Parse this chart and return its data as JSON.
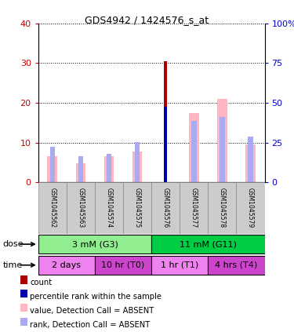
{
  "title": "GDS4942 / 1424576_s_at",
  "samples": [
    "GSM1045562",
    "GSM1045563",
    "GSM1045574",
    "GSM1045575",
    "GSM1045576",
    "GSM1045577",
    "GSM1045578",
    "GSM1045579"
  ],
  "count_values": [
    0,
    0,
    0,
    0,
    30.5,
    0,
    0,
    0
  ],
  "percentile_rank_values": [
    0,
    0,
    0,
    0,
    19.0,
    0,
    0,
    0
  ],
  "absent_value": [
    6.5,
    4.8,
    6.5,
    7.8,
    0,
    17.5,
    21.0,
    9.5
  ],
  "absent_rank": [
    9.0,
    6.5,
    7.2,
    10.2,
    0,
    15.5,
    16.5,
    11.5
  ],
  "ylim_left": [
    0,
    40
  ],
  "ylim_right": [
    0,
    100
  ],
  "yticks_left": [
    0,
    10,
    20,
    30,
    40
  ],
  "yticks_right": [
    0,
    25,
    50,
    75,
    100
  ],
  "dose_groups": [
    {
      "label": "3 mM (G3)",
      "start": 0,
      "end": 4,
      "color": "#90EE90"
    },
    {
      "label": "11 mM (G11)",
      "start": 4,
      "end": 8,
      "color": "#00CC44"
    }
  ],
  "time_groups": [
    {
      "label": "2 days",
      "start": 0,
      "end": 2,
      "color": "#EE82EE"
    },
    {
      "label": "10 hr (T0)",
      "start": 2,
      "end": 4,
      "color": "#CC44CC"
    },
    {
      "label": "1 hr (T1)",
      "start": 4,
      "end": 6,
      "color": "#EE82EE"
    },
    {
      "label": "4 hrs (T4)",
      "start": 6,
      "end": 8,
      "color": "#CC44CC"
    }
  ],
  "color_count": "#AA0000",
  "color_rank": "#0000AA",
  "color_absent_value": "#FFB6C1",
  "color_absent_rank": "#AAAAEE",
  "color_tick_left": "#CC0000",
  "color_tick_right": "#0000CC",
  "sample_box_color": "#CCCCCC",
  "legend_items": [
    {
      "label": "count",
      "color": "#AA0000"
    },
    {
      "label": "percentile rank within the sample",
      "color": "#0000AA"
    },
    {
      "label": "value, Detection Call = ABSENT",
      "color": "#FFB6C1"
    },
    {
      "label": "rank, Detection Call = ABSENT",
      "color": "#AAAAEE"
    }
  ]
}
